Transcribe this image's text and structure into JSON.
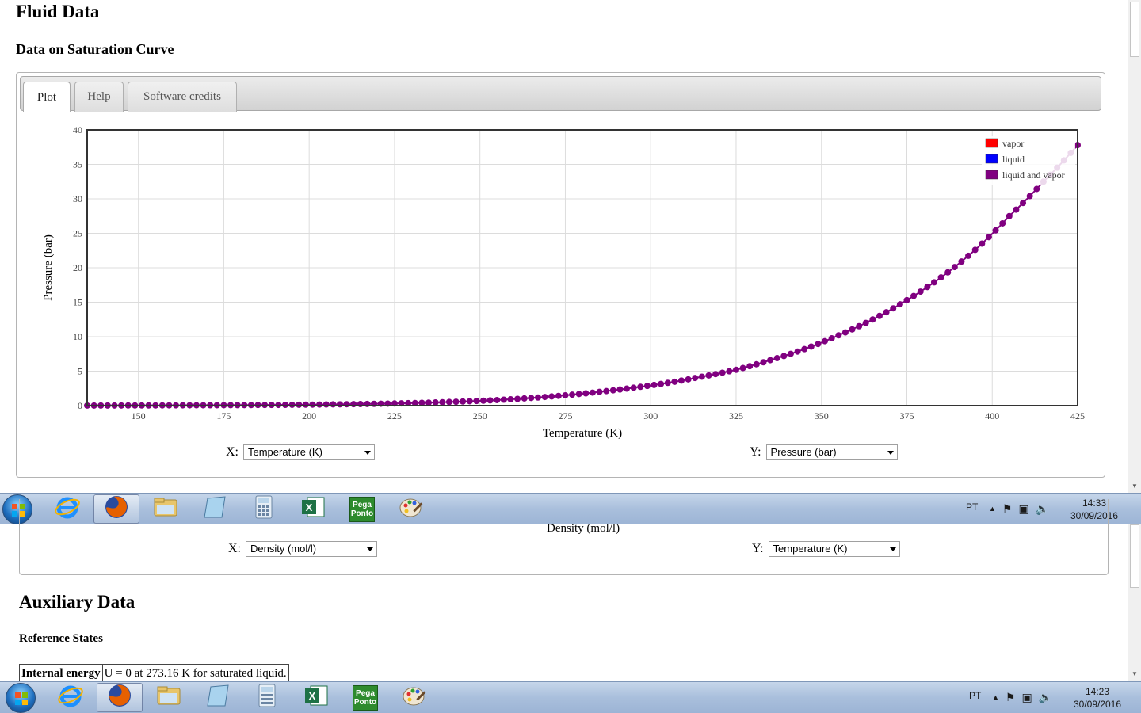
{
  "page": {
    "title": "Fluid Data",
    "section_title": "Data on Saturation Curve"
  },
  "tabs": [
    {
      "label": "Plot",
      "active": true
    },
    {
      "label": "Help",
      "active": false
    },
    {
      "label": "Software credits",
      "active": false
    }
  ],
  "chart_data": {
    "type": "scatter",
    "xlabel": "Temperature (K)",
    "ylabel": "Pressure (bar)",
    "xlim": [
      135,
      425
    ],
    "ylim": [
      0,
      40
    ],
    "x_ticks": [
      150,
      175,
      200,
      225,
      250,
      275,
      300,
      325,
      350,
      375,
      400,
      425
    ],
    "y_ticks": [
      0,
      5,
      10,
      15,
      20,
      25,
      30,
      35,
      40
    ],
    "grid": true,
    "legend_placement": "top-right",
    "legend": [
      {
        "label": "vapor",
        "color": "#ff0000"
      },
      {
        "label": "liquid",
        "color": "#0000ff"
      },
      {
        "label": "liquid and vapor",
        "color": "#800080"
      }
    ],
    "series": [
      {
        "name": "liquid and vapor",
        "color": "#800080",
        "x": [
          135,
          145,
          155,
          165,
          175,
          185,
          195,
          205,
          215,
          225,
          235,
          245,
          255,
          265,
          275,
          285,
          295,
          305,
          315,
          325,
          335,
          345,
          355,
          365,
          375,
          385,
          395,
          405,
          415,
          425
        ],
        "y": [
          0.01,
          0.02,
          0.03,
          0.05,
          0.06,
          0.09,
          0.12,
          0.17,
          0.23,
          0.31,
          0.43,
          0.6,
          0.81,
          1.11,
          1.5,
          2.0,
          2.6,
          3.3,
          4.2,
          5.2,
          6.6,
          8.2,
          10.2,
          12.5,
          15.3,
          18.6,
          22.6,
          27.5,
          32.5,
          37.8
        ]
      }
    ]
  },
  "controls": {
    "x_label": "X:",
    "x_value": "Temperature (K)",
    "y_label": "Y:",
    "y_value": "Pressure (bar)"
  },
  "lower": {
    "density_label": "Density (mol/l)",
    "x_label": "X:",
    "x_value": "Density (mol/l)",
    "y_label": "Y:",
    "y_value": "Temperature (K)",
    "aux_title": "Auxiliary Data",
    "ref_title": "Reference States",
    "ref_row": {
      "name": "Internal energy",
      "value": "U = 0 at 273.16 K for saturated liquid."
    }
  },
  "taskbar_top": {
    "lang": "PT",
    "time": "14:33",
    "date": "30/09/2016"
  },
  "taskbar_bottom": {
    "lang": "PT",
    "time": "14:23",
    "date": "30/09/2016"
  },
  "taskbar_apps": [
    {
      "name": "internet-explorer-icon"
    },
    {
      "name": "firefox-icon",
      "open": true
    },
    {
      "name": "file-explorer-icon"
    },
    {
      "name": "notepad-icon"
    },
    {
      "name": "calculator-icon"
    },
    {
      "name": "excel-icon"
    },
    {
      "name": "pega-ponto-icon",
      "text": "Pega Ponto"
    },
    {
      "name": "paint-icon"
    }
  ]
}
